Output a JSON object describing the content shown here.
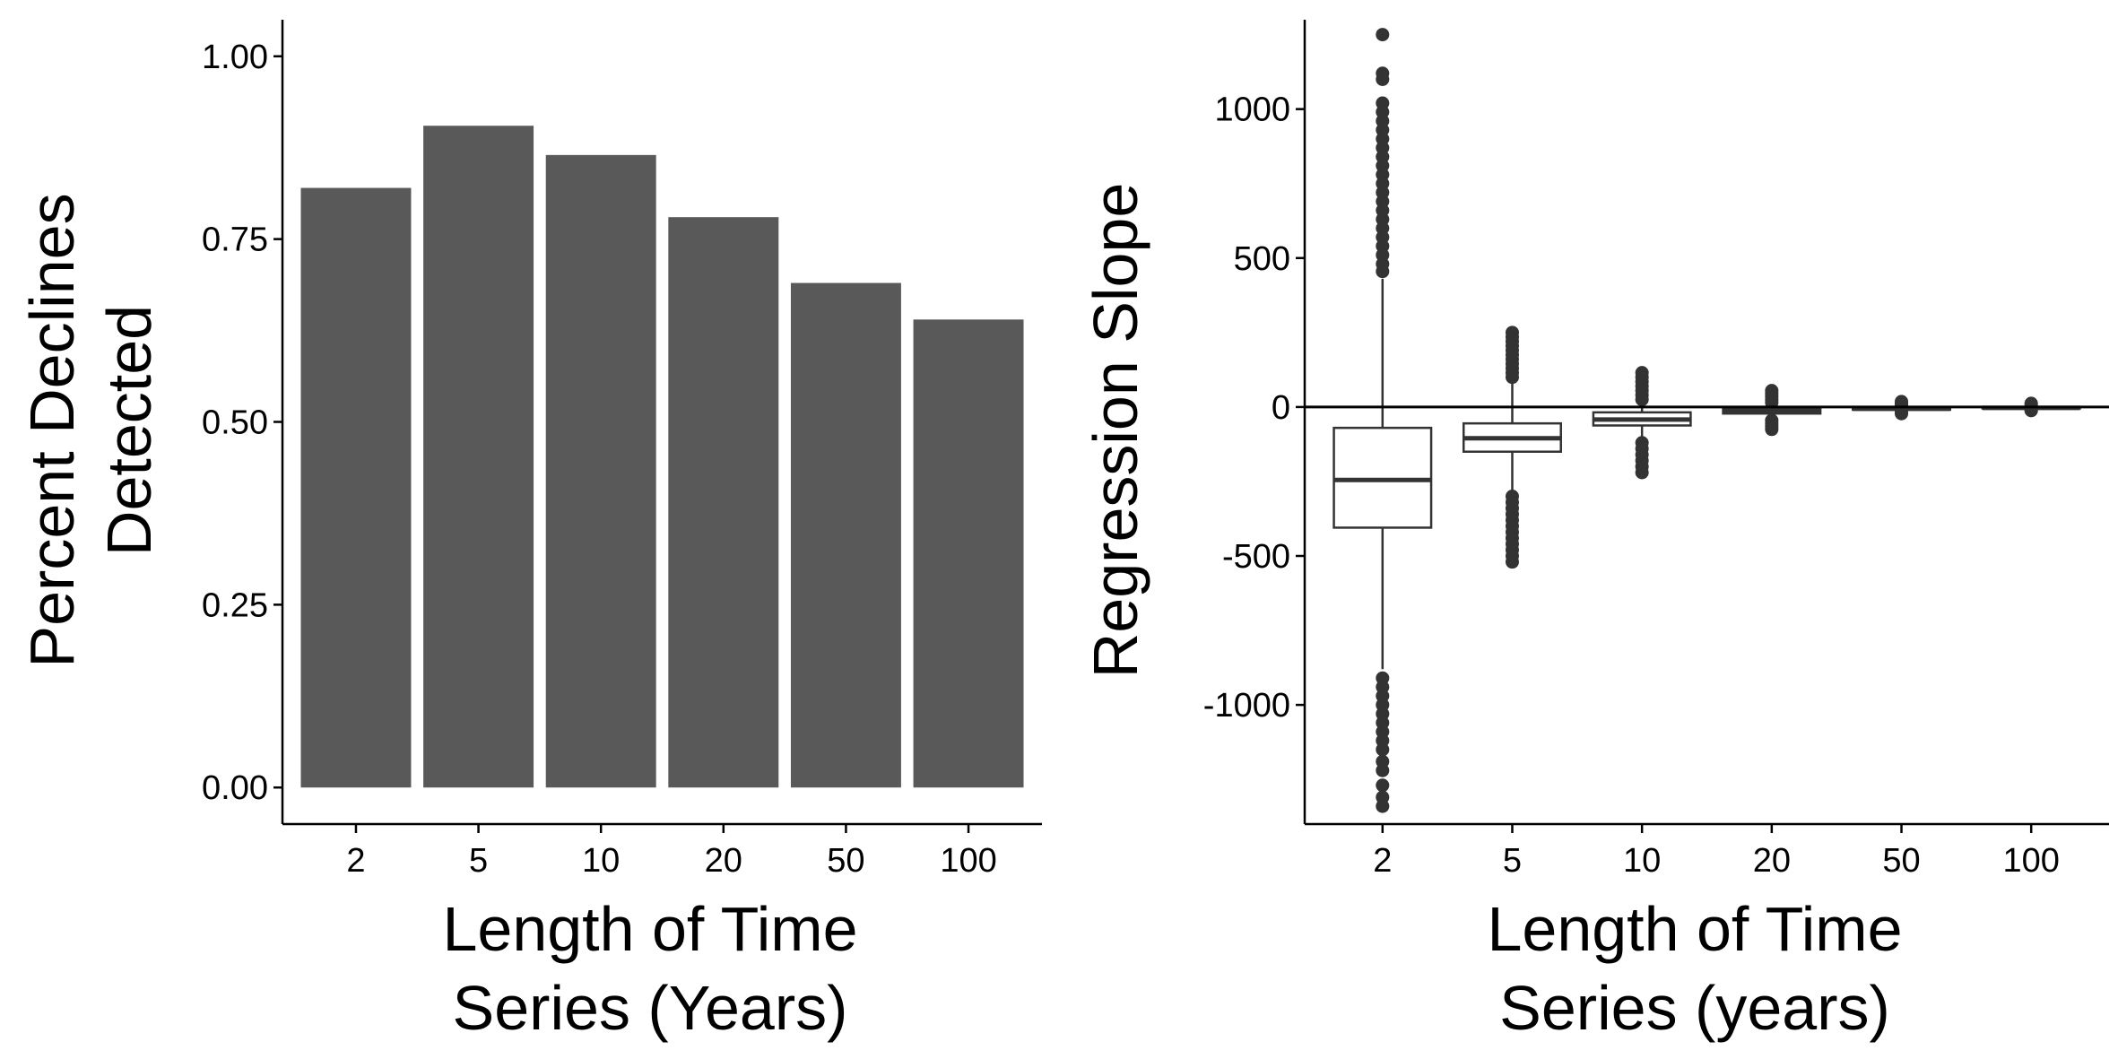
{
  "chart_data": [
    {
      "type": "bar",
      "categories": [
        "2",
        "5",
        "10",
        "20",
        "50",
        "100"
      ],
      "values": [
        0.82,
        0.905,
        0.865,
        0.78,
        0.69,
        0.64
      ],
      "xlabel_lines": [
        "Length of Time",
        "Series (Years)"
      ],
      "ylabel_lines": [
        "Percent Declines",
        "Detected"
      ],
      "ylim": [
        -0.05,
        1.05
      ],
      "yticks": [
        0,
        0.25,
        0.5,
        0.75,
        1
      ],
      "ytick_labels": [
        "0.00",
        "0.25",
        "0.50",
        "0.75",
        "1.00"
      ],
      "bar_color": "#595959",
      "grid": false
    },
    {
      "type": "box",
      "categories": [
        "2",
        "5",
        "10",
        "20",
        "50",
        "100"
      ],
      "boxes": [
        {
          "q1": -405,
          "median": -245,
          "q3": -70,
          "whisker_low": -880,
          "whisker_high": 430,
          "outliers": [
            1250,
            1120,
            1100,
            1020,
            990,
            960,
            930,
            900,
            870,
            840,
            810,
            780,
            750,
            720,
            690,
            660,
            630,
            600,
            570,
            540,
            510,
            480,
            455,
            -910,
            -940,
            -970,
            -1000,
            -1030,
            -1060,
            -1090,
            -1120,
            -1150,
            -1190,
            -1220,
            -1270,
            -1310,
            -1340
          ]
        },
        {
          "q1": -150,
          "median": -105,
          "q3": -55,
          "whisker_low": -285,
          "whisker_high": 85,
          "outliers": [
            250,
            235,
            220,
            205,
            190,
            175,
            160,
            145,
            130,
            115,
            100,
            -300,
            -320,
            -340,
            -360,
            -380,
            -400,
            -420,
            -440,
            -460,
            -480,
            -500,
            -520
          ]
        },
        {
          "q1": -62,
          "median": -42,
          "q3": -18,
          "whisker_low": -110,
          "whisker_high": 10,
          "outliers": [
            115,
            100,
            85,
            70,
            55,
            40,
            25,
            -120,
            -140,
            -160,
            -180,
            -200,
            -220
          ]
        },
        {
          "q1": -22,
          "median": -14,
          "q3": -6,
          "whisker_low": -35,
          "whisker_high": 8,
          "outliers": [
            55,
            45,
            35,
            25,
            15,
            -45,
            -55,
            -65,
            -75
          ]
        },
        {
          "q1": -9,
          "median": -6,
          "q3": -3,
          "whisker_low": -13,
          "whisker_high": 2,
          "outliers": [
            18,
            12,
            8,
            -18,
            -22
          ]
        },
        {
          "q1": -5,
          "median": -3,
          "q3": -1,
          "whisker_low": -8,
          "whisker_high": 3,
          "outliers": [
            12,
            8,
            -10,
            -12
          ]
        }
      ],
      "xlabel_lines": [
        "Length of Time",
        "Series (years)"
      ],
      "ylabel": "Regression Slope",
      "ylim": [
        -1400,
        1300
      ],
      "yticks": [
        -1000,
        -500,
        0,
        500,
        1000
      ],
      "ytick_labels": [
        "-1000",
        "-500",
        "0",
        "500",
        "1000"
      ],
      "hline_y": 0,
      "box_fill": "#ffffff",
      "stroke_color": "#333333",
      "point_color": "#333333",
      "grid": false
    }
  ]
}
